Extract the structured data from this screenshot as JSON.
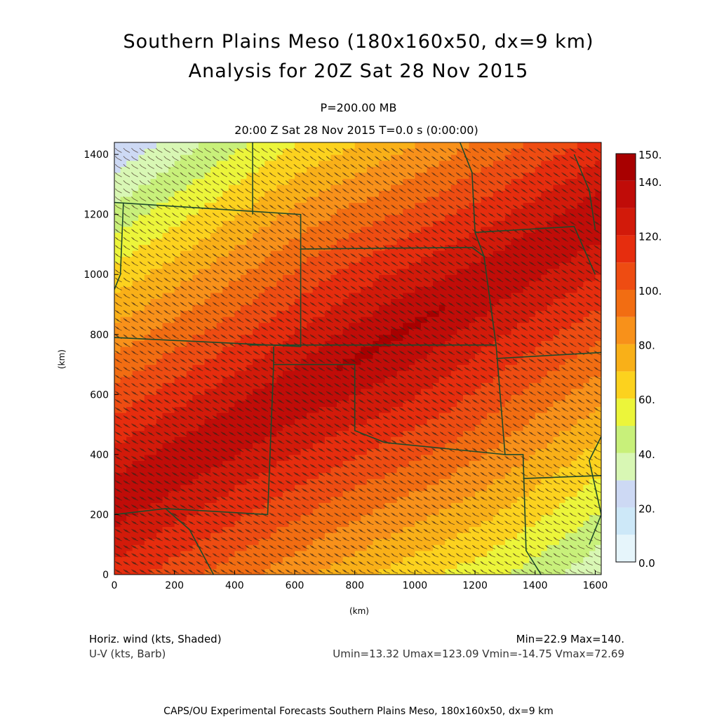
{
  "header": {
    "title_line1": "Southern Plains Meso (180x160x50, dx=9 km)",
    "title_line2": "Analysis for 20Z Sat 28 Nov 2015",
    "level": "P=200.00 MB",
    "time": "20:00 Z Sat 28 Nov 2015    T=0.0 s (0:00:00)"
  },
  "footer": {
    "left_line1": "Horiz. wind (kts, Shaded)",
    "left_line2": "U-V (kts, Barb)",
    "right_line1": "Min=22.9 Max=140.",
    "right_line2": "Umin=13.32 Umax=123.09 Vmin=-14.75 Vmax=72.69",
    "credit": "CAPS/OU Experimental Forecasts  Southern Plains Meso, 180x160x50, dx=9 km"
  },
  "chart_data": {
    "type": "heatmap",
    "variable": "Horizontal wind speed (kts, shaded) with U-V wind barbs",
    "xlabel": "(km)",
    "ylabel": "(km)",
    "xlim": [
      0,
      1620
    ],
    "ylim": [
      0,
      1440
    ],
    "x_ticks": [
      0,
      200,
      400,
      600,
      800,
      1000,
      1200,
      1400,
      1600
    ],
    "y_ticks": [
      0,
      200,
      400,
      600,
      800,
      1000,
      1200,
      1400
    ],
    "colorbar": {
      "min": 0,
      "max": 150,
      "step": 10,
      "tick_labels": [
        "0.0",
        "20.",
        "40.",
        "60.",
        "80.",
        "100.",
        "120.",
        "140.",
        "150."
      ],
      "tick_values": [
        0,
        20,
        40,
        60,
        80,
        100,
        120,
        140,
        150
      ],
      "colors": [
        "#e6f5fb",
        "#cde8f8",
        "#cdd9f4",
        "#d8f7b4",
        "#c8f07a",
        "#ecf53a",
        "#fcd21e",
        "#f9b018",
        "#f8911a",
        "#f26d12",
        "#ee4c12",
        "#e62d0e",
        "#d21a0a",
        "#c00c08",
        "#a80000"
      ]
    },
    "field_summary": {
      "min": 22.9,
      "max": 140,
      "jet_axis": "southwest-northeast band of maximum winds (~130-140 kts) from about (0,250) km to (1620,1200) km",
      "weak_region": "northwest corner ~25-60 kts"
    },
    "barbs": {
      "direction": "mostly west-southwesterly",
      "u_range": [
        13.32,
        123.09
      ],
      "v_range": [
        -14.75,
        72.69
      ]
    },
    "map_boundaries": "US state outlines (southern plains)",
    "boundary_color": "#1e4a2a"
  }
}
